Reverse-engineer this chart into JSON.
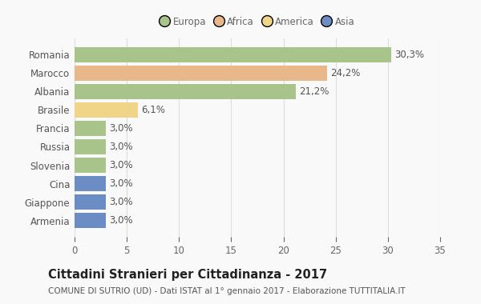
{
  "categories": [
    "Romania",
    "Marocco",
    "Albania",
    "Brasile",
    "Francia",
    "Russia",
    "Slovenia",
    "Cina",
    "Giappone",
    "Armenia"
  ],
  "values": [
    30.3,
    24.2,
    21.2,
    6.1,
    3.0,
    3.0,
    3.0,
    3.0,
    3.0,
    3.0
  ],
  "labels": [
    "30,3%",
    "24,2%",
    "21,2%",
    "6,1%",
    "3,0%",
    "3,0%",
    "3,0%",
    "3,0%",
    "3,0%",
    "3,0%"
  ],
  "colors": [
    "#a8c48a",
    "#e8b88a",
    "#a8c48a",
    "#f0d488",
    "#a8c48a",
    "#a8c48a",
    "#a8c48a",
    "#6b8dc4",
    "#6b8dc4",
    "#6b8dc4"
  ],
  "legend_labels": [
    "Europa",
    "Africa",
    "America",
    "Asia"
  ],
  "legend_colors": [
    "#a8c48a",
    "#e8b88a",
    "#f0d488",
    "#6b8dc4"
  ],
  "title": "Cittadini Stranieri per Cittadinanza - 2017",
  "subtitle": "COMUNE DI SUTRIO (UD) - Dati ISTAT al 1° gennaio 2017 - Elaborazione TUTTITALIA.IT",
  "xlim": [
    0,
    35
  ],
  "xticks": [
    0,
    5,
    10,
    15,
    20,
    25,
    30,
    35
  ],
  "background_color": "#f9f9f9",
  "grid_color": "#dddddd",
  "bar_height": 0.82,
  "label_fontsize": 8.5,
  "title_fontsize": 10.5,
  "subtitle_fontsize": 7.5,
  "tick_fontsize": 8.5,
  "legend_fontsize": 8.5
}
